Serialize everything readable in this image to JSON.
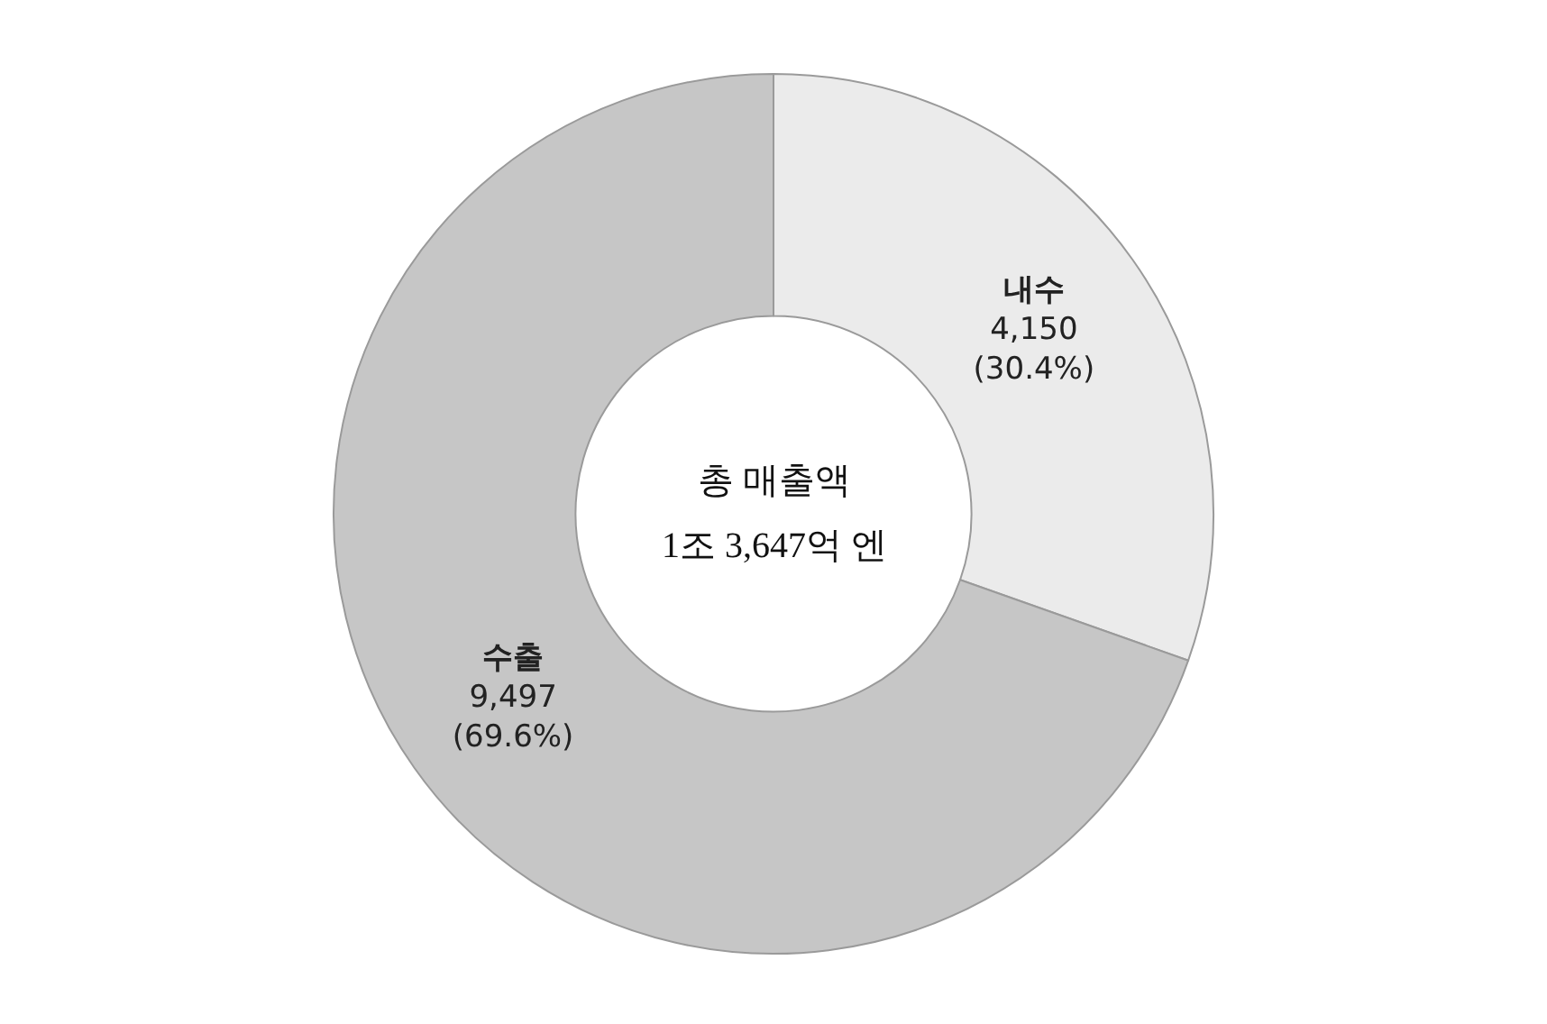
{
  "chart_data": {
    "type": "donut",
    "categories": [
      "내수",
      "수출"
    ],
    "values": [
      4150,
      9497
    ],
    "colors": [
      "#ebebeb",
      "#c6c6c6"
    ],
    "value_labels": [
      "4,150 (30.4%)",
      "9,497 (69.6%)"
    ],
    "annotations": [
      "총 매출액",
      "1조 3,647억 엔"
    ],
    "legend": false
  }
}
